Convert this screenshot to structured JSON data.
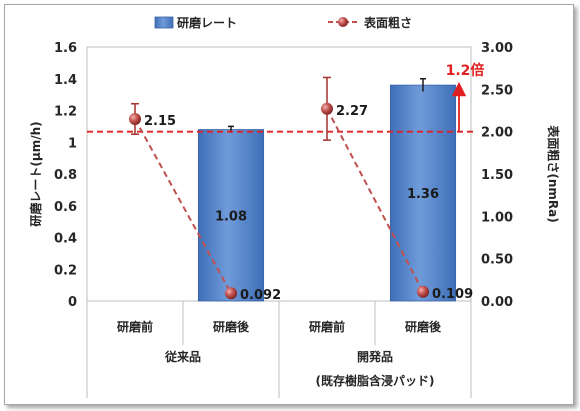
{
  "chart_data": {
    "type": "bar",
    "categories": [
      "研磨前",
      "研磨後",
      "研磨前",
      "研磨後"
    ],
    "groups": [
      {
        "label": "従来品",
        "sublabel": ""
      },
      {
        "label": "開発品",
        "sublabel": "(既存樹脂含浸パッド)"
      }
    ],
    "series": [
      {
        "name": "研磨レート",
        "type": "bar",
        "axis": "left",
        "values": [
          null,
          1.08,
          null,
          1.36
        ],
        "errors": [
          null,
          0.02,
          null,
          0.04
        ]
      },
      {
        "name": "表面粗さ",
        "type": "line",
        "axis": "right",
        "values": [
          2.15,
          0.092,
          2.27,
          0.109
        ],
        "errors": [
          0.18,
          null,
          0.37,
          null
        ]
      }
    ],
    "data_labels": {
      "bar": [
        "",
        "1.08",
        "",
        "1.36"
      ],
      "line": [
        "2.15",
        "0.092",
        "2.27",
        "0.109"
      ]
    },
    "y_left": {
      "label": "研磨レート(μm/h)",
      "ylim": [
        0,
        1.6
      ],
      "ticks": [
        "0",
        "0.2",
        "0.4",
        "0.6",
        "0.8",
        "1",
        "1.2",
        "1.4",
        "1.6"
      ]
    },
    "y_right": {
      "label": "表面粗さ(nmRa)",
      "ylim": [
        0,
        3.0
      ],
      "ticks": [
        "0.00",
        "0.50",
        "1.00",
        "1.50",
        "2.00",
        "2.50",
        "3.00"
      ]
    },
    "reference_line": {
      "axis": "right",
      "value": 2.0
    },
    "annotation": {
      "text": "1.2倍",
      "from_value": 2.0,
      "to_value": 2.55
    },
    "legend": {
      "position": "top",
      "entries": [
        "研磨レート",
        "表面粗さ"
      ]
    },
    "colors": {
      "bar": "#5b8bd0",
      "line": "#c0504d",
      "reference": "#e02020",
      "gridline": "#d9d9d9"
    },
    "grid": false
  }
}
